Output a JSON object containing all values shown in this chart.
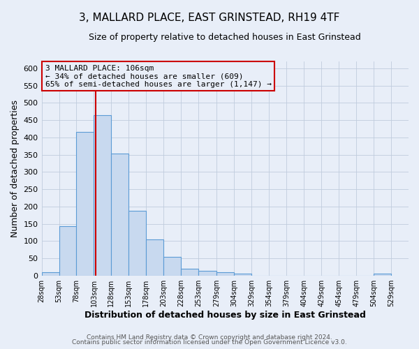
{
  "title": "3, MALLARD PLACE, EAST GRINSTEAD, RH19 4TF",
  "subtitle": "Size of property relative to detached houses in East Grinstead",
  "xlabel": "Distribution of detached houses by size in East Grinstead",
  "ylabel": "Number of detached properties",
  "footer_line1": "Contains HM Land Registry data © Crown copyright and database right 2024.",
  "footer_line2": "Contains public sector information licensed under the Open Government Licence v3.0.",
  "bin_edges": [
    28,
    53,
    78,
    103,
    128,
    153,
    178,
    203,
    228,
    253,
    279,
    304,
    329,
    354,
    379,
    404,
    429,
    454,
    479,
    504,
    529
  ],
  "bin_labels": [
    "28sqm",
    "53sqm",
    "78sqm",
    "103sqm",
    "128sqm",
    "153sqm",
    "178sqm",
    "203sqm",
    "228sqm",
    "253sqm",
    "279sqm",
    "304sqm",
    "329sqm",
    "354sqm",
    "379sqm",
    "404sqm",
    "429sqm",
    "454sqm",
    "479sqm",
    "504sqm",
    "529sqm"
  ],
  "counts": [
    10,
    143,
    415,
    465,
    353,
    188,
    105,
    53,
    20,
    14,
    10,
    5,
    0,
    0,
    0,
    0,
    0,
    0,
    0,
    5
  ],
  "bar_facecolor": "#c8d9ef",
  "bar_edgecolor": "#5b9bd5",
  "grid_color": "#c0ccdd",
  "background_color": "#e8eef8",
  "property_value": 106,
  "annotation_title": "3 MALLARD PLACE: 106sqm",
  "annotation_line2": "← 34% of detached houses are smaller (609)",
  "annotation_line3": "65% of semi-detached houses are larger (1,147) →",
  "vline_color": "#cc0000",
  "annotation_box_edgecolor": "#cc0000",
  "ylim": [
    0,
    620
  ],
  "xlim": [
    28,
    554
  ],
  "yticks": [
    0,
    50,
    100,
    150,
    200,
    250,
    300,
    350,
    400,
    450,
    500,
    550,
    600
  ],
  "title_fontsize": 11,
  "subtitle_fontsize": 9,
  "xlabel_fontsize": 9,
  "ylabel_fontsize": 9
}
